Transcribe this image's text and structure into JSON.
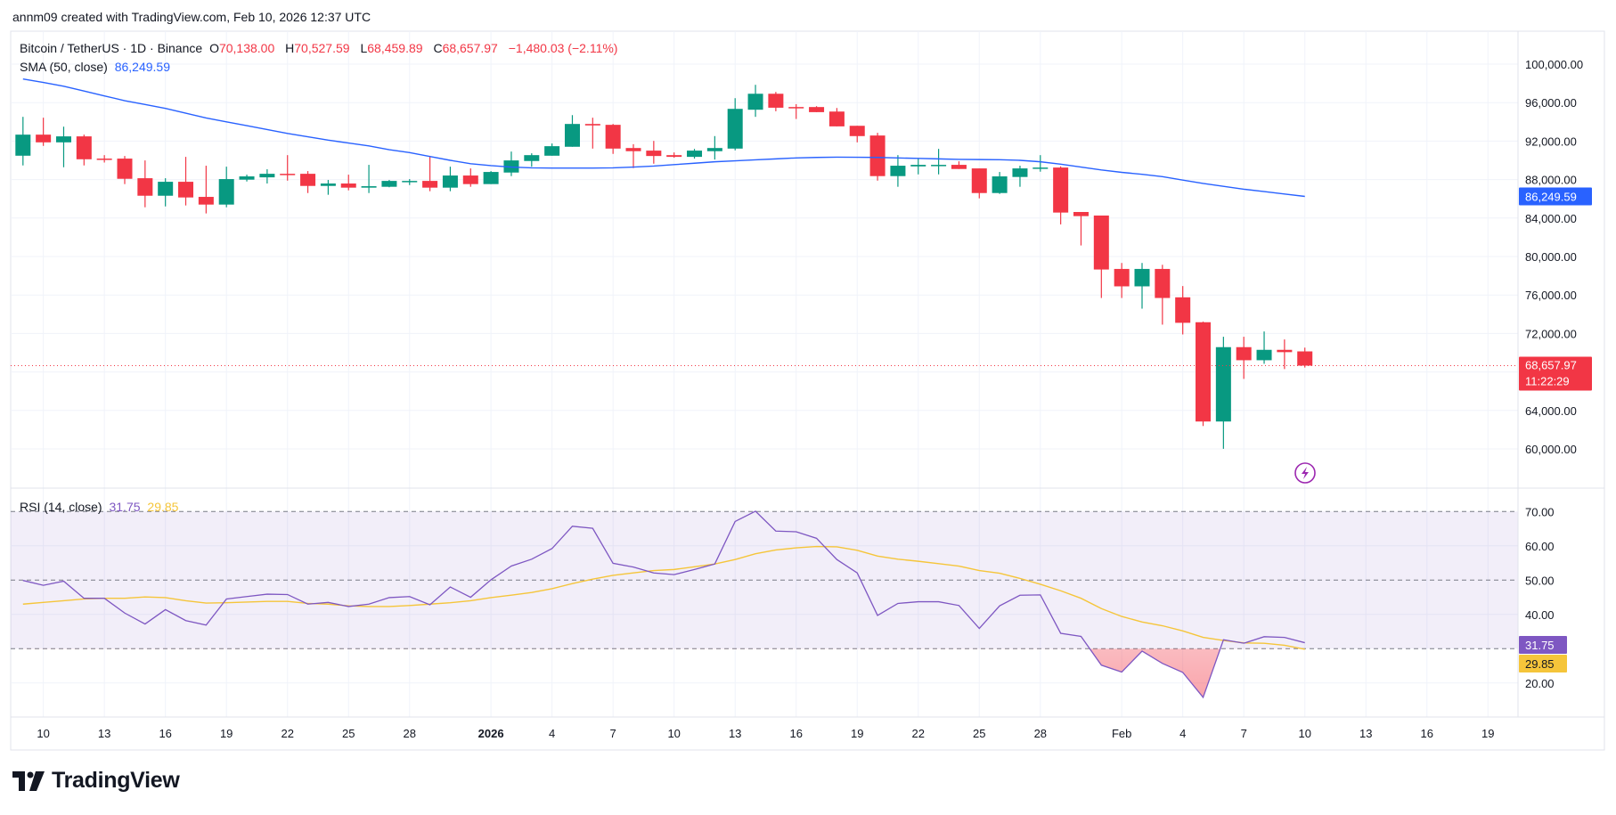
{
  "header": {
    "credit": "annm09 created with TradingView.com, Feb 10, 2026 12:37 UTC"
  },
  "legend": {
    "symbol": "Bitcoin / TetherUS · 1D · Binance",
    "open_label": "O",
    "open": "70,138.00",
    "high_label": "H",
    "high": "70,527.59",
    "low_label": "L",
    "low": "68,459.89",
    "close_label": "C",
    "close": "68,657.97",
    "change": "−1,480.03 (−2.11%)",
    "sma_name": "SMA (50, close)",
    "sma_value": "86,249.59",
    "rsi_name": "RSI (14, close)",
    "rsi_value": "31.75",
    "rsi_ma_value": "29.85"
  },
  "price_axis": {
    "ticks": [
      "100,000.00",
      "96,000.00",
      "92,000.00",
      "88,000.00",
      "84,000.00",
      "80,000.00",
      "76,000.00",
      "72,000.00",
      "64,000.00",
      "60,000.00"
    ],
    "tick_values": [
      100000,
      96000,
      92000,
      88000,
      84000,
      80000,
      76000,
      72000,
      64000,
      60000
    ],
    "sma_tag": "86,249.59",
    "price_tag": "68,657.97",
    "countdown": "11:22:29"
  },
  "rsi_axis": {
    "ticks": [
      "70.00",
      "60.00",
      "50.00",
      "40.00",
      "20.00"
    ],
    "tick_values": [
      70,
      60,
      50,
      40,
      20
    ],
    "rsi_tag": "31.75",
    "rsi_ma_tag": "29.85"
  },
  "time_axis": {
    "labels": [
      {
        "label": "10",
        "date": "2025-12-10"
      },
      {
        "label": "13",
        "date": "2025-12-13"
      },
      {
        "label": "16",
        "date": "2025-12-16"
      },
      {
        "label": "19",
        "date": "2025-12-19"
      },
      {
        "label": "22",
        "date": "2025-12-22"
      },
      {
        "label": "25",
        "date": "2025-12-25"
      },
      {
        "label": "28",
        "date": "2025-12-28"
      },
      {
        "label": "2026",
        "date": "2026-01-01",
        "bold": true
      },
      {
        "label": "4",
        "date": "2026-01-04"
      },
      {
        "label": "7",
        "date": "2026-01-07"
      },
      {
        "label": "10",
        "date": "2026-01-10"
      },
      {
        "label": "13",
        "date": "2026-01-13"
      },
      {
        "label": "16",
        "date": "2026-01-16"
      },
      {
        "label": "19",
        "date": "2026-01-19"
      },
      {
        "label": "22",
        "date": "2026-01-22"
      },
      {
        "label": "25",
        "date": "2026-01-25"
      },
      {
        "label": "28",
        "date": "2026-01-28"
      },
      {
        "label": "Feb",
        "date": "2026-02-01"
      },
      {
        "label": "4",
        "date": "2026-02-04"
      },
      {
        "label": "7",
        "date": "2026-02-07"
      },
      {
        "label": "10",
        "date": "2026-02-10"
      },
      {
        "label": "13",
        "date": "2026-02-13"
      },
      {
        "label": "16",
        "date": "2026-02-16"
      },
      {
        "label": "19",
        "date": "2026-02-19"
      }
    ]
  },
  "logo": {
    "text": "TradingView"
  },
  "colors": {
    "up": "#089981",
    "down": "#f23645",
    "sma": "#2962ff",
    "rsi": "#7e57c2",
    "rsi_ma": "#f5c53a",
    "grid": "#f0f3fa",
    "alert": "#9c27b0"
  },
  "icons": {
    "alert": "lightning-alert-icon",
    "logo": "tradingview-logo-icon"
  },
  "chart_data": {
    "type": "candlestick",
    "title": "Bitcoin / TetherUS · 1D · Binance",
    "ylim": [
      58000,
      101000
    ],
    "grid": true,
    "ohlc_fields": [
      "date",
      "open",
      "high",
      "low",
      "close"
    ],
    "candles": [
      [
        "2025-12-09",
        90480,
        94520,
        89470,
        92670
      ],
      [
        "2025-12-10",
        92670,
        94430,
        91500,
        91870
      ],
      [
        "2025-12-11",
        91870,
        93500,
        89280,
        92490
      ],
      [
        "2025-12-12",
        92490,
        92670,
        89470,
        90110
      ],
      [
        "2025-12-13",
        90180,
        90540,
        89770,
        90110
      ],
      [
        "2025-12-14",
        90180,
        90450,
        87530,
        88080
      ],
      [
        "2025-12-15",
        88140,
        89990,
        85120,
        86320
      ],
      [
        "2025-12-16",
        86320,
        88140,
        85210,
        87770
      ],
      [
        "2025-12-17",
        87770,
        90360,
        85310,
        86140
      ],
      [
        "2025-12-18",
        86200,
        89440,
        84480,
        85400
      ],
      [
        "2025-12-19",
        85400,
        89340,
        85120,
        88050
      ],
      [
        "2025-12-20",
        87990,
        88510,
        87800,
        88330
      ],
      [
        "2025-12-21",
        88230,
        89070,
        87590,
        88600
      ],
      [
        "2025-12-22",
        88600,
        90540,
        87890,
        88540
      ],
      [
        "2025-12-23",
        88600,
        88880,
        86600,
        87340
      ],
      [
        "2025-12-24",
        87340,
        87960,
        86420,
        87590
      ],
      [
        "2025-12-25",
        87590,
        88510,
        86880,
        87160
      ],
      [
        "2025-12-26",
        87160,
        89530,
        86600,
        87310
      ],
      [
        "2025-12-27",
        87250,
        87960,
        87200,
        87860
      ],
      [
        "2025-12-28",
        87830,
        88050,
        87430,
        87860
      ],
      [
        "2025-12-29",
        87860,
        90390,
        86790,
        87160
      ],
      [
        "2025-12-30",
        87160,
        89340,
        86790,
        88420
      ],
      [
        "2025-12-31",
        88420,
        89160,
        87250,
        87530
      ],
      [
        "2026-01-01",
        87530,
        88880,
        87530,
        88790
      ],
      [
        "2026-01-02",
        88730,
        90910,
        88360,
        89990
      ],
      [
        "2026-01-03",
        89930,
        90730,
        89340,
        90540
      ],
      [
        "2026-01-04",
        90480,
        91750,
        90480,
        91470
      ],
      [
        "2026-01-05",
        91410,
        94700,
        91410,
        93780
      ],
      [
        "2026-01-06",
        93780,
        94430,
        91220,
        93630
      ],
      [
        "2026-01-07",
        93690,
        93780,
        90670,
        91220
      ],
      [
        "2026-01-08",
        91280,
        91680,
        89190,
        90950
      ],
      [
        "2026-01-09",
        91010,
        92020,
        89650,
        90450
      ],
      [
        "2026-01-10",
        90540,
        90820,
        90270,
        90360
      ],
      [
        "2026-01-11",
        90360,
        91190,
        90180,
        91010
      ],
      [
        "2026-01-12",
        90950,
        92520,
        90080,
        91280
      ],
      [
        "2026-01-13",
        91220,
        96460,
        91040,
        95350
      ],
      [
        "2026-01-14",
        95260,
        97850,
        94520,
        96920
      ],
      [
        "2026-01-15",
        96920,
        97110,
        95100,
        95470
      ],
      [
        "2026-01-16",
        95540,
        95840,
        94300,
        95470
      ],
      [
        "2026-01-17",
        95540,
        95630,
        95010,
        95010
      ],
      [
        "2026-01-18",
        95070,
        95440,
        93530,
        93530
      ],
      [
        "2026-01-19",
        93590,
        93590,
        91870,
        92520
      ],
      [
        "2026-01-20",
        92580,
        92860,
        87890,
        88360
      ],
      [
        "2026-01-21",
        88360,
        90540,
        87250,
        89440
      ],
      [
        "2026-01-22",
        89370,
        90210,
        88540,
        89530
      ],
      [
        "2026-01-23",
        89470,
        91190,
        88540,
        89530
      ],
      [
        "2026-01-24",
        89530,
        89900,
        89100,
        89100
      ],
      [
        "2026-01-25",
        89160,
        89160,
        86050,
        86600
      ],
      [
        "2026-01-26",
        86600,
        88790,
        86510,
        88330
      ],
      [
        "2026-01-27",
        88270,
        89440,
        87250,
        89160
      ],
      [
        "2026-01-28",
        89190,
        90540,
        88820,
        89250
      ],
      [
        "2026-01-29",
        89250,
        89370,
        83340,
        84570
      ],
      [
        "2026-01-30",
        84630,
        84630,
        81150,
        84200
      ],
      [
        "2026-01-31",
        84260,
        84260,
        75690,
        78650
      ],
      [
        "2026-02-01",
        78710,
        79330,
        75690,
        76900
      ],
      [
        "2026-02-02",
        76900,
        79330,
        74580,
        78710
      ],
      [
        "2026-02-03",
        78710,
        79140,
        72920,
        75690
      ],
      [
        "2026-02-04",
        75760,
        76930,
        71900,
        73110
      ],
      [
        "2026-02-05",
        73170,
        73230,
        62380,
        62850
      ],
      [
        "2026-02-06",
        62850,
        71660,
        60010,
        70580
      ],
      [
        "2026-02-07",
        70580,
        71660,
        67280,
        69220
      ],
      [
        "2026-02-08",
        69220,
        72210,
        68850,
        70300
      ],
      [
        "2026-02-09",
        70300,
        71380,
        68300,
        70060
      ],
      [
        "2026-02-10",
        70138.0,
        70527.59,
        68459.89,
        68657.97
      ]
    ],
    "sma_50": [
      98450,
      98100,
      97700,
      97200,
      96700,
      96200,
      95800,
      95400,
      94900,
      94400,
      94000,
      93600,
      93200,
      92800,
      92450,
      92100,
      91800,
      91500,
      91100,
      90800,
      90400,
      90000,
      89650,
      89450,
      89300,
      89220,
      89200,
      89200,
      89200,
      89220,
      89300,
      89400,
      89550,
      89700,
      89850,
      89950,
      90050,
      90150,
      90250,
      90300,
      90330,
      90320,
      90300,
      90250,
      90200,
      90150,
      90100,
      90080,
      90060,
      90000,
      89850,
      89600,
      89300,
      89000,
      88750,
      88550,
      88300,
      87950,
      87600,
      87300,
      87000,
      86750,
      86500,
      86249.59
    ],
    "rsi_panel": {
      "ylim": [
        12,
        76
      ],
      "levels": [
        70,
        50,
        30
      ],
      "rsi": [
        49.9,
        48.5,
        49.7,
        44.7,
        44.7,
        40.4,
        37.2,
        41.4,
        38.2,
        36.9,
        44.5,
        45.2,
        45.9,
        45.8,
        43.0,
        43.5,
        42.3,
        43.0,
        44.9,
        45.2,
        42.8,
        48.0,
        45.0,
        50.1,
        54.1,
        56.1,
        59.2,
        65.7,
        65.1,
        54.9,
        53.8,
        52.1,
        51.6,
        53.1,
        54.7,
        67.1,
        70.1,
        64.3,
        64.1,
        62.2,
        56.0,
        52.1,
        39.7,
        43.2,
        43.7,
        43.7,
        42.6,
        35.9,
        42.5,
        45.6,
        45.7,
        34.5,
        33.6,
        25.2,
        23.2,
        29.3,
        25.7,
        23.1,
        15.8,
        32.6,
        31.6,
        33.5,
        33.3,
        31.75
      ],
      "rsi_ma": [
        43.0,
        43.5,
        44.0,
        44.5,
        44.7,
        44.7,
        45.1,
        44.9,
        44.0,
        43.3,
        43.4,
        43.6,
        43.8,
        43.8,
        43.2,
        43.0,
        42.5,
        42.3,
        42.3,
        42.6,
        43.0,
        43.4,
        44.0,
        44.9,
        45.6,
        46.4,
        47.5,
        49.0,
        50.3,
        51.4,
        52.1,
        52.8,
        53.1,
        53.9,
        54.7,
        56.0,
        57.7,
        58.8,
        59.4,
        59.8,
        59.7,
        58.7,
        57.0,
        56.1,
        55.5,
        54.8,
        54.1,
        52.8,
        52.0,
        50.5,
        48.8,
        46.9,
        44.7,
        41.7,
        39.4,
        37.8,
        36.7,
        35.2,
        33.3,
        32.4,
        31.7,
        31.6,
        31.0,
        29.85
      ]
    }
  }
}
